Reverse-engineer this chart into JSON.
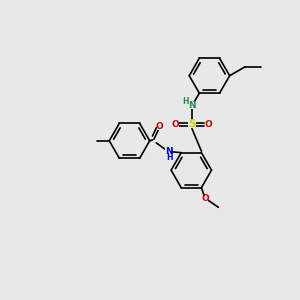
{
  "background_color": "#e8e8e8",
  "bond_color": "#000000",
  "bond_width": 1.2,
  "atom_colors": {
    "N_amide": "#0000cc",
    "N_sulfonamide": "#2e8b57",
    "O": "#cc0000",
    "S": "#cccc00",
    "H": "#2e8b57"
  },
  "font_size": 6.5,
  "figsize": [
    3.0,
    3.0
  ],
  "dpi": 100
}
